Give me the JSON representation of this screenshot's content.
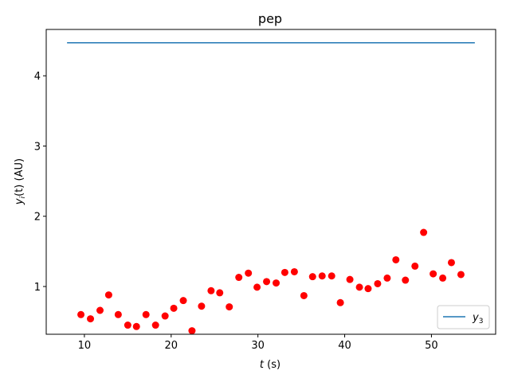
{
  "chart_data": {
    "type": "scatter",
    "title": "pep",
    "xlabel_var": "t",
    "xlabel_unit": " (s)",
    "ylabel_var": "y",
    "ylabel_sub": "i",
    "ylabel_arg": "(t) (AU)",
    "xlim": [
      5.6,
      57.4
    ],
    "ylim": [
      0.32,
      4.66
    ],
    "xticks": [
      10,
      20,
      30,
      40,
      50
    ],
    "yticks": [
      1,
      2,
      3,
      4
    ],
    "series": [
      {
        "name": "y",
        "name_sub": "3",
        "kind": "line",
        "color": "#1f77b4",
        "x": [
          8.0,
          55.0
        ],
        "y": [
          4.47,
          4.47
        ]
      },
      {
        "kind": "scatter",
        "color": "#ff0000",
        "x": [
          9.6,
          10.7,
          11.8,
          12.8,
          13.9,
          15.0,
          16.0,
          17.1,
          18.2,
          19.3,
          20.3,
          21.4,
          22.4,
          23.5,
          24.6,
          25.6,
          26.7,
          27.8,
          28.9,
          29.9,
          31.0,
          32.1,
          33.1,
          34.2,
          35.3,
          36.3,
          37.4,
          38.5,
          39.5,
          40.6,
          41.7,
          42.7,
          43.8,
          44.9,
          45.9,
          47.0,
          48.1,
          49.1,
          50.2,
          51.3,
          52.3,
          53.4
        ],
        "y": [
          0.6,
          0.54,
          0.66,
          0.88,
          0.6,
          0.45,
          0.43,
          0.6,
          0.45,
          0.58,
          0.69,
          0.8,
          0.37,
          0.72,
          0.94,
          0.91,
          0.71,
          1.13,
          1.19,
          0.99,
          1.07,
          1.05,
          1.2,
          1.21,
          0.87,
          1.14,
          1.15,
          1.15,
          0.77,
          1.1,
          0.99,
          0.97,
          1.04,
          1.12,
          1.38,
          1.09,
          1.29,
          1.77,
          1.18,
          1.12,
          1.34,
          1.17
        ]
      }
    ],
    "legend_location": "lower right"
  }
}
